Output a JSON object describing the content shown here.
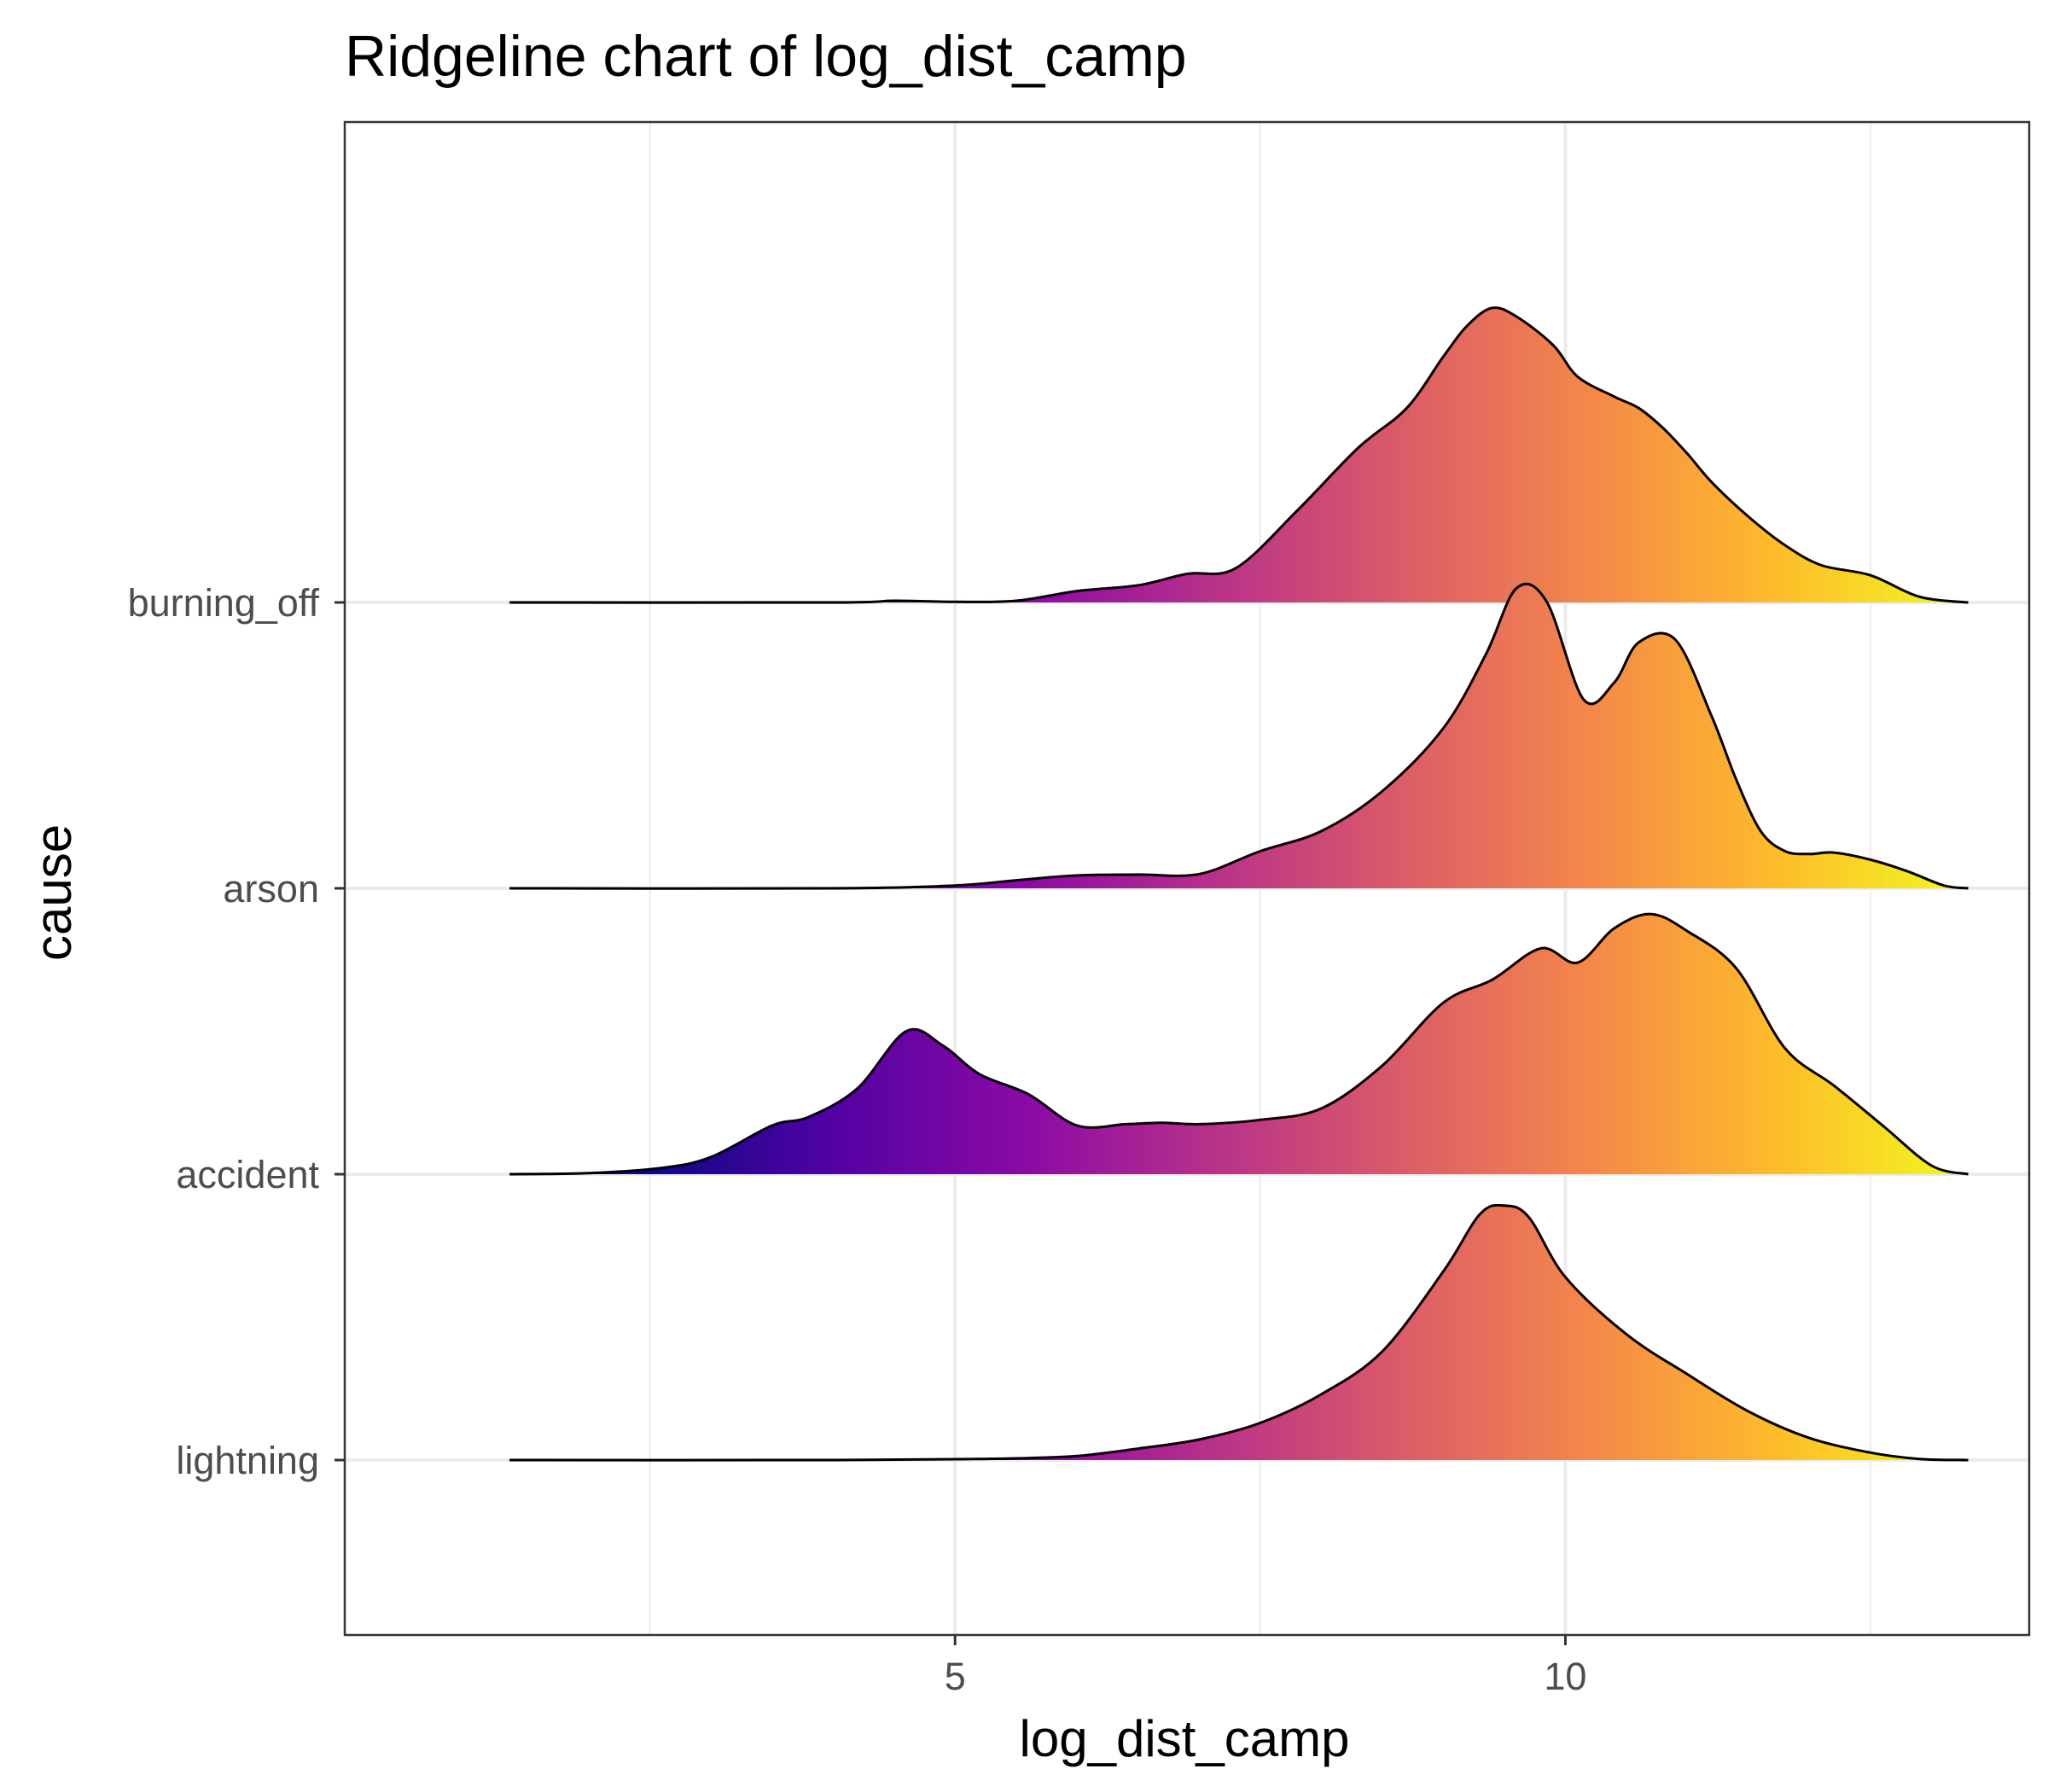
{
  "chart_data": {
    "type": "ridgeline",
    "title": "Ridgeline chart of log_dist_camp",
    "xlabel": "log_dist_camp",
    "ylabel": "cause",
    "xlim": [
      0,
      13.8
    ],
    "x_ticks": [
      5,
      10
    ],
    "x_tick_labels": [
      "5",
      "10"
    ],
    "categories": [
      "lightning",
      "accident",
      "arson",
      "burning_off"
    ],
    "density_scale": 1.54,
    "grid": true,
    "fill_gradient": [
      "#0d0887",
      "#5402a3",
      "#8b0aa5",
      "#b83289",
      "#db5c68",
      "#f48849",
      "#febd2a",
      "#f0f921"
    ],
    "fill_range": [
      2.5,
      13.3
    ],
    "series": [
      {
        "name": "lightning",
        "x": [
          1.35,
          4.0,
          5.0,
          5.5,
          6.0,
          6.5,
          7.0,
          7.5,
          8.0,
          8.5,
          9.0,
          9.3,
          9.5,
          9.7,
          10.0,
          10.5,
          11.0,
          11.5,
          12.0,
          12.5,
          12.9,
          13.3
        ],
        "y": [
          0.0,
          0.0,
          0.003,
          0.006,
          0.014,
          0.04,
          0.072,
          0.13,
          0.23,
          0.38,
          0.66,
          0.86,
          0.89,
          0.85,
          0.64,
          0.44,
          0.3,
          0.17,
          0.077,
          0.026,
          0.004,
          0.0
        ]
      },
      {
        "name": "accident",
        "x": [
          1.35,
          2.0,
          2.6,
          3.0,
          3.5,
          3.8,
          4.2,
          4.6,
          4.9,
          5.2,
          5.6,
          6.0,
          6.4,
          6.7,
          7.0,
          7.5,
          8.0,
          8.5,
          9.0,
          9.4,
          9.8,
          10.1,
          10.4,
          10.7,
          11.0,
          11.4,
          11.8,
          12.2,
          12.6,
          13.0,
          13.3
        ],
        "y": [
          0.0,
          0.004,
          0.022,
          0.06,
          0.17,
          0.2,
          0.3,
          0.5,
          0.45,
          0.35,
          0.28,
          0.17,
          0.175,
          0.18,
          0.175,
          0.19,
          0.23,
          0.38,
          0.6,
          0.68,
          0.79,
          0.74,
          0.86,
          0.91,
          0.85,
          0.72,
          0.44,
          0.31,
          0.17,
          0.03,
          0.0
        ]
      },
      {
        "name": "arson",
        "x": [
          1.35,
          4.0,
          5.0,
          5.5,
          6.0,
          6.5,
          7.0,
          7.5,
          8.0,
          8.5,
          9.0,
          9.35,
          9.6,
          9.85,
          10.15,
          10.4,
          10.6,
          10.9,
          11.2,
          11.4,
          11.6,
          11.8,
          12.0,
          12.2,
          12.5,
          12.8,
          13.1,
          13.3
        ],
        "y": [
          0.0,
          0.0,
          0.01,
          0.028,
          0.045,
          0.048,
          0.05,
          0.13,
          0.2,
          0.34,
          0.56,
          0.82,
          1.05,
          1.0,
          0.66,
          0.72,
          0.86,
          0.87,
          0.6,
          0.38,
          0.2,
          0.13,
          0.12,
          0.125,
          0.1,
          0.06,
          0.01,
          0.0
        ]
      },
      {
        "name": "burning_off",
        "x": [
          1.35,
          4.0,
          4.5,
          5.0,
          5.5,
          6.0,
          6.5,
          6.9,
          7.3,
          7.8,
          8.3,
          8.7,
          9.0,
          9.2,
          9.4,
          9.6,
          9.9,
          10.1,
          10.4,
          10.6,
          10.8,
          11.0,
          11.2,
          11.5,
          11.8,
          12.1,
          12.5,
          12.9,
          13.3
        ],
        "y": [
          0.0,
          0.0,
          0.006,
          0.002,
          0.006,
          0.04,
          0.06,
          0.1,
          0.12,
          0.32,
          0.54,
          0.68,
          0.86,
          0.97,
          1.03,
          1.0,
          0.9,
          0.79,
          0.72,
          0.68,
          0.61,
          0.52,
          0.42,
          0.3,
          0.2,
          0.13,
          0.095,
          0.02,
          0.0
        ]
      }
    ]
  }
}
